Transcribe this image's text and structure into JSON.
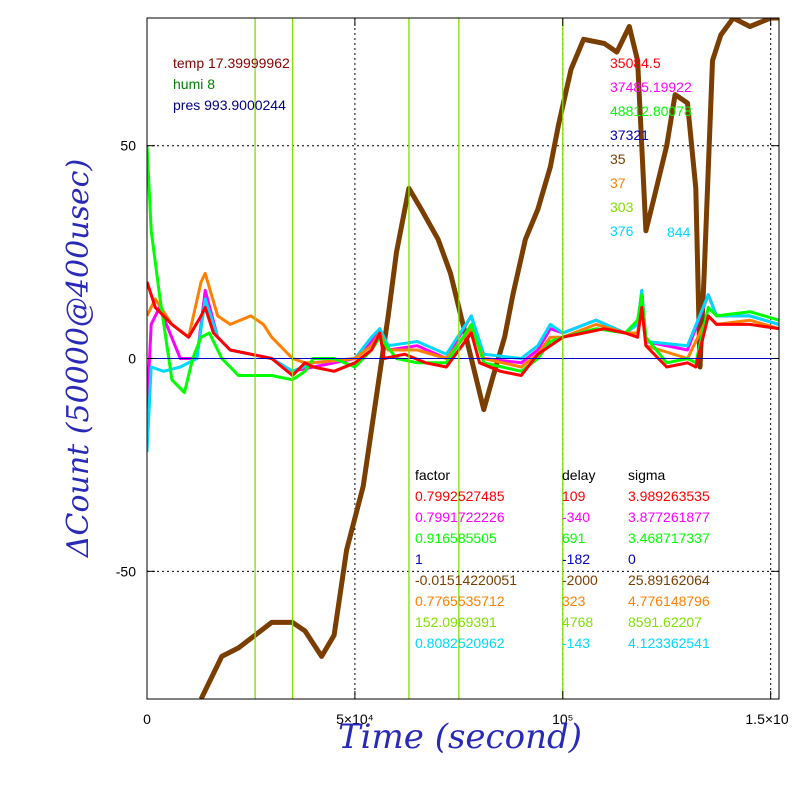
{
  "chart_data": {
    "type": "line",
    "xlabel": "Time (second)",
    "ylabel": "ΔCount (50000@400usec)",
    "xlim": [
      0,
      152000
    ],
    "ylim": [
      -80,
      80
    ],
    "x_ticks": [
      {
        "value": 0,
        "label": "0"
      },
      {
        "value": 50000,
        "label": "5×10⁴"
      },
      {
        "value": 100000,
        "label": "10⁵"
      },
      {
        "value": 150000,
        "label": "1.5×10"
      }
    ],
    "y_ticks": [
      {
        "value": 50,
        "label": "50"
      },
      {
        "value": 0,
        "label": "0"
      },
      {
        "value": -50,
        "label": "-50"
      }
    ],
    "grid": true,
    "env": [
      {
        "text": "temp 17.39999962",
        "color": "#8b0000"
      },
      {
        "text": "humi 8",
        "color": "#008000"
      },
      {
        "text": "pres 993.9000244",
        "color": "#000080"
      }
    ],
    "channel_labels": [
      "35084.5",
      "37485.19922",
      "48812.80078",
      "37321",
      "35",
      "37",
      "303",
      "376",
      "844"
    ],
    "table_headers": [
      "factor",
      "delay",
      "sigma"
    ],
    "series": [
      {
        "color": "#ff0000",
        "factor": "0.7992527485",
        "delay": "109",
        "sigma": "3.989263535",
        "points": [
          [
            0,
            18
          ],
          [
            2000,
            12
          ],
          [
            6000,
            8
          ],
          [
            10000,
            5
          ],
          [
            13000,
            10
          ],
          [
            14000,
            12
          ],
          [
            16000,
            6
          ],
          [
            20000,
            2
          ],
          [
            25000,
            1
          ],
          [
            30000,
            0
          ],
          [
            35000,
            -4
          ],
          [
            38000,
            -1
          ],
          [
            40000,
            -2
          ],
          [
            45000,
            -3
          ],
          [
            50000,
            -1
          ],
          [
            54000,
            2
          ],
          [
            56000,
            6
          ],
          [
            57000,
            0
          ],
          [
            62000,
            1
          ],
          [
            67000,
            -1
          ],
          [
            72000,
            -2
          ],
          [
            78000,
            6
          ],
          [
            80000,
            -1
          ],
          [
            85000,
            -3
          ],
          [
            90000,
            -4
          ],
          [
            94000,
            1
          ],
          [
            97000,
            3
          ],
          [
            100000,
            5
          ],
          [
            105000,
            6
          ],
          [
            110000,
            7
          ],
          [
            115000,
            6
          ],
          [
            118000,
            5
          ],
          [
            119000,
            12
          ],
          [
            120000,
            3
          ],
          [
            125000,
            -2
          ],
          [
            130000,
            -1
          ],
          [
            132000,
            -2
          ],
          [
            135000,
            10
          ],
          [
            137000,
            8
          ],
          [
            140000,
            8
          ],
          [
            145000,
            8
          ],
          [
            152000,
            7
          ]
        ]
      },
      {
        "color": "#ff00ff",
        "factor": "0.7991722226",
        "delay": "-340",
        "sigma": "3.877261877",
        "points": [
          [
            0,
            -12
          ],
          [
            1000,
            8
          ],
          [
            3000,
            12
          ],
          [
            8000,
            0
          ],
          [
            12000,
            0
          ],
          [
            14000,
            16
          ],
          [
            17000,
            5
          ],
          [
            20000,
            2
          ],
          [
            30000,
            0
          ],
          [
            35000,
            -3
          ],
          [
            40000,
            -2
          ],
          [
            50000,
            0
          ],
          [
            54000,
            4
          ],
          [
            56000,
            7
          ],
          [
            58000,
            2
          ],
          [
            65000,
            3
          ],
          [
            72000,
            0
          ],
          [
            78000,
            10
          ],
          [
            81000,
            0
          ],
          [
            90000,
            -1
          ],
          [
            94000,
            2
          ],
          [
            97000,
            7
          ],
          [
            100000,
            6
          ],
          [
            108000,
            9
          ],
          [
            115000,
            6
          ],
          [
            118000,
            8
          ],
          [
            119000,
            16
          ],
          [
            120000,
            4
          ],
          [
            130000,
            2
          ],
          [
            135000,
            15
          ],
          [
            137000,
            10
          ],
          [
            145000,
            10
          ],
          [
            152000,
            8
          ]
        ]
      },
      {
        "color": "#00ff00",
        "factor": "0.916585505",
        "delay": "691",
        "sigma": "3.468717337",
        "points": [
          [
            0,
            50
          ],
          [
            1000,
            30
          ],
          [
            3000,
            15
          ],
          [
            6000,
            -5
          ],
          [
            9000,
            -8
          ],
          [
            11000,
            0
          ],
          [
            13000,
            5
          ],
          [
            15000,
            6
          ],
          [
            18000,
            0
          ],
          [
            22000,
            -4
          ],
          [
            30000,
            -4
          ],
          [
            35000,
            -5
          ],
          [
            38000,
            -3
          ],
          [
            40000,
            0
          ],
          [
            45000,
            0
          ],
          [
            50000,
            -2
          ],
          [
            54000,
            2
          ],
          [
            56000,
            5
          ],
          [
            60000,
            0
          ],
          [
            65000,
            -1
          ],
          [
            72000,
            -1
          ],
          [
            78000,
            8
          ],
          [
            81000,
            -1
          ],
          [
            90000,
            -3
          ],
          [
            94000,
            0
          ],
          [
            97000,
            4
          ],
          [
            100000,
            5
          ],
          [
            108000,
            7
          ],
          [
            115000,
            6
          ],
          [
            118000,
            9
          ],
          [
            119000,
            15
          ],
          [
            120000,
            5
          ],
          [
            125000,
            -1
          ],
          [
            130000,
            0
          ],
          [
            132000,
            -1
          ],
          [
            135000,
            12
          ],
          [
            137000,
            10
          ],
          [
            145000,
            11
          ],
          [
            152000,
            9
          ]
        ]
      },
      {
        "color": "#0000c0",
        "factor": "1",
        "delay": "-182",
        "sigma": "0",
        "points": [
          [
            0,
            0
          ],
          [
            152000,
            0
          ]
        ]
      },
      {
        "color": "#7a3e00",
        "factor": "-0.01514220051",
        "delay": "-2000",
        "sigma": "25.89162064",
        "points": [
          [
            13000,
            -80
          ],
          [
            18000,
            -70
          ],
          [
            22000,
            -68
          ],
          [
            26000,
            -65
          ],
          [
            30000,
            -62
          ],
          [
            35000,
            -62
          ],
          [
            38000,
            -64
          ],
          [
            42000,
            -70
          ],
          [
            45000,
            -65
          ],
          [
            48000,
            -45
          ],
          [
            52000,
            -30
          ],
          [
            55000,
            -10
          ],
          [
            58000,
            10
          ],
          [
            60000,
            25
          ],
          [
            63000,
            40
          ],
          [
            66000,
            35
          ],
          [
            70000,
            28
          ],
          [
            73000,
            20
          ],
          [
            75000,
            12
          ],
          [
            78000,
            0
          ],
          [
            81000,
            -12
          ],
          [
            83000,
            -5
          ],
          [
            86000,
            5
          ],
          [
            88000,
            15
          ],
          [
            91000,
            28
          ],
          [
            94000,
            35
          ],
          [
            97000,
            45
          ],
          [
            99000,
            55
          ],
          [
            102000,
            68
          ],
          [
            105000,
            75
          ],
          [
            110000,
            74
          ],
          [
            113000,
            72
          ],
          [
            116000,
            78
          ],
          [
            118000,
            70
          ],
          [
            120000,
            30
          ],
          [
            122000,
            38
          ],
          [
            125000,
            50
          ],
          [
            127000,
            62
          ],
          [
            130000,
            60
          ],
          [
            132000,
            40
          ],
          [
            133000,
            -2
          ],
          [
            134000,
            20
          ],
          [
            136000,
            70
          ],
          [
            138000,
            76
          ],
          [
            141000,
            80
          ],
          [
            145000,
            78
          ],
          [
            150000,
            80
          ],
          [
            152000,
            80
          ]
        ]
      },
      {
        "color": "#ff8000",
        "factor": "0.7765535712",
        "delay": "323",
        "sigma": "4.776148796",
        "points": [
          [
            0,
            10
          ],
          [
            2000,
            14
          ],
          [
            6000,
            8
          ],
          [
            10000,
            5
          ],
          [
            13000,
            18
          ],
          [
            14000,
            20
          ],
          [
            17000,
            10
          ],
          [
            20000,
            8
          ],
          [
            25000,
            10
          ],
          [
            28000,
            8
          ],
          [
            30000,
            5
          ],
          [
            35000,
            0
          ],
          [
            38000,
            -1
          ],
          [
            40000,
            -1
          ],
          [
            50000,
            0
          ],
          [
            54000,
            3
          ],
          [
            56000,
            6
          ],
          [
            58000,
            2
          ],
          [
            65000,
            2
          ],
          [
            72000,
            0
          ],
          [
            78000,
            7
          ],
          [
            81000,
            0
          ],
          [
            90000,
            -2
          ],
          [
            94000,
            1
          ],
          [
            97000,
            5
          ],
          [
            100000,
            5
          ],
          [
            108000,
            8
          ],
          [
            115000,
            6
          ],
          [
            118000,
            6
          ],
          [
            119000,
            12
          ],
          [
            120000,
            3
          ],
          [
            130000,
            0
          ],
          [
            135000,
            10
          ],
          [
            137000,
            8
          ],
          [
            145000,
            9
          ],
          [
            152000,
            7
          ]
        ]
      },
      {
        "color": "#80e000",
        "factor": "152.0969391",
        "delay": "4768",
        "sigma": "8591.62207",
        "points": [
          [
            26000,
            -80
          ],
          [
            26000,
            80
          ],
          [
            35000,
            -80
          ],
          [
            35000,
            80
          ],
          [
            63000,
            -80
          ],
          [
            63000,
            80
          ],
          [
            75000,
            -80
          ],
          [
            75000,
            80
          ],
          [
            100000,
            -80
          ],
          [
            100000,
            80
          ]
        ]
      },
      {
        "color": "#00d8ff",
        "factor": "0.8082520962",
        "delay": "-143",
        "sigma": "4.123362541",
        "points": [
          [
            0,
            -22
          ],
          [
            1000,
            -2
          ],
          [
            4000,
            -3
          ],
          [
            8000,
            -2
          ],
          [
            12000,
            0
          ],
          [
            14000,
            14
          ],
          [
            17000,
            5
          ],
          [
            20000,
            2
          ],
          [
            30000,
            0
          ],
          [
            35000,
            -3
          ],
          [
            40000,
            -1
          ],
          [
            50000,
            0
          ],
          [
            54000,
            5
          ],
          [
            56000,
            7
          ],
          [
            58000,
            3
          ],
          [
            65000,
            4
          ],
          [
            72000,
            1
          ],
          [
            78000,
            10
          ],
          [
            81000,
            1
          ],
          [
            90000,
            0
          ],
          [
            94000,
            3
          ],
          [
            97000,
            8
          ],
          [
            100000,
            6
          ],
          [
            108000,
            9
          ],
          [
            115000,
            6
          ],
          [
            118000,
            8
          ],
          [
            119000,
            16
          ],
          [
            120000,
            4
          ],
          [
            130000,
            3
          ],
          [
            135000,
            15
          ],
          [
            137000,
            10
          ],
          [
            145000,
            10
          ],
          [
            152000,
            8
          ]
        ]
      }
    ]
  }
}
